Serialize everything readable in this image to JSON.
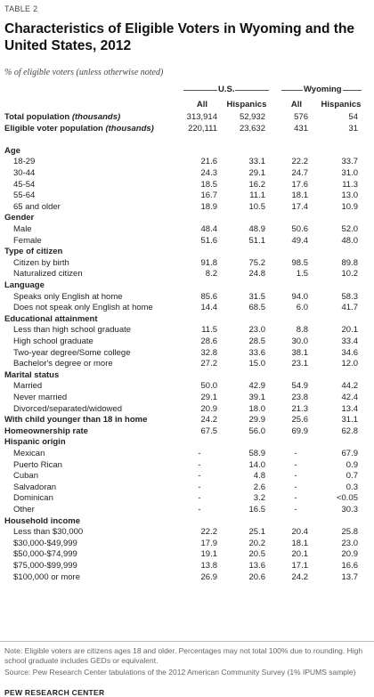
{
  "table_label": "TABLE 2",
  "title": "Characteristics of Eligible Voters in Wyoming and the United States, 2012",
  "subtitle": "% of eligible voters (unless otherwise noted)",
  "groups": {
    "us": "U.S.",
    "wy": "Wyoming"
  },
  "columns": [
    "All",
    "Hispanics",
    "All",
    "Hispanics"
  ],
  "rows": [
    {
      "label": "Total population",
      "label_italic": "(thousands)",
      "bold": true,
      "v": [
        "313,914",
        "52,932",
        "576",
        "54"
      ]
    },
    {
      "label": "Eligible voter population",
      "label_italic": "(thousands)",
      "bold": true,
      "v": [
        "220,111",
        "23,632",
        "431",
        "31"
      ]
    },
    {
      "label": "",
      "v": []
    },
    {
      "label": "Age",
      "bold": true,
      "v": []
    },
    {
      "label": "18-29",
      "indent": true,
      "v": [
        "21.6",
        "33.1",
        "22.2",
        "33.7"
      ]
    },
    {
      "label": "30-44",
      "indent": true,
      "v": [
        "24.3",
        "29.1",
        "24.7",
        "31.0"
      ]
    },
    {
      "label": "45-54",
      "indent": true,
      "v": [
        "18.5",
        "16.2",
        "17.6",
        "11.3"
      ]
    },
    {
      "label": "55-64",
      "indent": true,
      "v": [
        "16.7",
        "11.1",
        "18.1",
        "13.0"
      ]
    },
    {
      "label": "65 and older",
      "indent": true,
      "v": [
        "18.9",
        "10.5",
        "17.4",
        "10.9"
      ]
    },
    {
      "label": "Gender",
      "bold": true,
      "v": []
    },
    {
      "label": "Male",
      "indent": true,
      "v": [
        "48.4",
        "48.9",
        "50.6",
        "52.0"
      ]
    },
    {
      "label": "Female",
      "indent": true,
      "v": [
        "51.6",
        "51.1",
        "49.4",
        "48.0"
      ]
    },
    {
      "label": "Type of citizen",
      "bold": true,
      "v": []
    },
    {
      "label": "Citizen by birth",
      "indent": true,
      "v": [
        "91.8",
        "75.2",
        "98.5",
        "89.8"
      ]
    },
    {
      "label": "Naturalized citizen",
      "indent": true,
      "v": [
        "8.2",
        "24.8",
        "1.5",
        "10.2"
      ]
    },
    {
      "label": "Language",
      "bold": true,
      "v": []
    },
    {
      "label": "Speaks only English at home",
      "indent": true,
      "v": [
        "85.6",
        "31.5",
        "94.0",
        "58.3"
      ]
    },
    {
      "label": "Does not speak only English at home",
      "indent": true,
      "v": [
        "14.4",
        "68.5",
        "6.0",
        "41.7"
      ]
    },
    {
      "label": "Educational attainment",
      "bold": true,
      "v": []
    },
    {
      "label": "Less than high school graduate",
      "indent": true,
      "v": [
        "11.5",
        "23.0",
        "8.8",
        "20.1"
      ]
    },
    {
      "label": "High school graduate",
      "indent": true,
      "v": [
        "28.6",
        "28.5",
        "30.0",
        "33.4"
      ]
    },
    {
      "label": "Two-year degree/Some college",
      "indent": true,
      "v": [
        "32.8",
        "33.6",
        "38.1",
        "34.6"
      ]
    },
    {
      "label": "Bachelor's degree or more",
      "indent": true,
      "v": [
        "27.2",
        "15.0",
        "23.1",
        "12.0"
      ]
    },
    {
      "label": "Marital status",
      "bold": true,
      "v": []
    },
    {
      "label": "Married",
      "indent": true,
      "v": [
        "50.0",
        "42.9",
        "54.9",
        "44.2"
      ]
    },
    {
      "label": "Never married",
      "indent": true,
      "v": [
        "29.1",
        "39.1",
        "23.8",
        "42.4"
      ]
    },
    {
      "label": "Divorced/separated/widowed",
      "indent": true,
      "v": [
        "20.9",
        "18.0",
        "21.3",
        "13.4"
      ]
    },
    {
      "label": "With child younger than 18 in home",
      "bold": true,
      "v": [
        "24.2",
        "29.9",
        "25.6",
        "31.1"
      ]
    },
    {
      "label": "Homeownership rate",
      "bold": true,
      "v": [
        "67.5",
        "56.0",
        "69.9",
        "62.8"
      ]
    },
    {
      "label": "Hispanic origin",
      "bold": true,
      "v": []
    },
    {
      "label": "Mexican",
      "indent": true,
      "v": [
        "-",
        "58.9",
        "-",
        "67.9"
      ]
    },
    {
      "label": "Puerto Rican",
      "indent": true,
      "v": [
        "-",
        "14.0",
        "-",
        "0.9"
      ]
    },
    {
      "label": "Cuban",
      "indent": true,
      "v": [
        "-",
        "4.8",
        "-",
        "0.7"
      ]
    },
    {
      "label": "Salvadoran",
      "indent": true,
      "v": [
        "-",
        "2.6",
        "-",
        "0.3"
      ]
    },
    {
      "label": "Dominican",
      "indent": true,
      "v": [
        "-",
        "3.2",
        "-",
        "<0.05"
      ]
    },
    {
      "label": "Other",
      "indent": true,
      "v": [
        "-",
        "16.5",
        "-",
        "30.3"
      ]
    },
    {
      "label": "Household income",
      "bold": true,
      "v": []
    },
    {
      "label": "Less than $30,000",
      "indent": true,
      "v": [
        "22.2",
        "25.1",
        "20.4",
        "25.8"
      ]
    },
    {
      "label": "$30,000-$49,999",
      "indent": true,
      "v": [
        "17.9",
        "20.2",
        "18.1",
        "23.0"
      ]
    },
    {
      "label": "$50,000-$74,999",
      "indent": true,
      "v": [
        "19.1",
        "20.5",
        "20.1",
        "20.9"
      ]
    },
    {
      "label": "$75,000-$99,999",
      "indent": true,
      "v": [
        "13.8",
        "13.6",
        "17.1",
        "16.6"
      ]
    },
    {
      "label": "$100,000 or more",
      "indent": true,
      "v": [
        "26.9",
        "20.6",
        "24.2",
        "13.7"
      ]
    }
  ],
  "note": "Note: Eligible voters are citizens ages 18 and older. Percentages may not total 100% due to rounding. High school graduate includes GEDs or equivalent.",
  "source": "Source: Pew Research Center tabulations of the 2012 American Community Survey (1% IPUMS sample)",
  "brand": "PEW RESEARCH CENTER"
}
